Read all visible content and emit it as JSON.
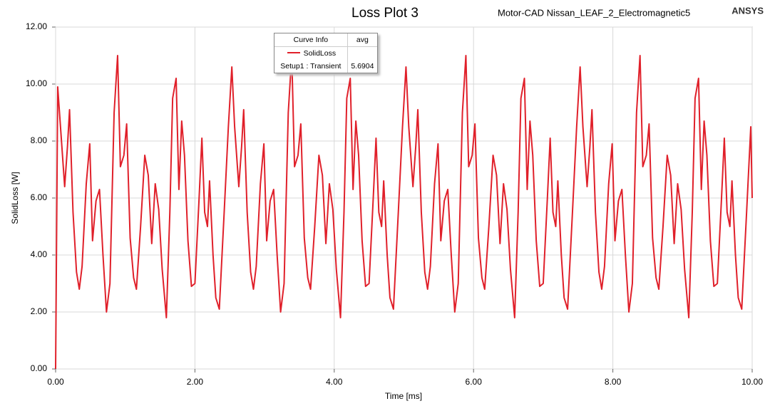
{
  "chart_data": {
    "type": "line",
    "title": "Loss Plot 3",
    "subtitle": "Motor-CAD Nissan_LEAF_2_Electromagnetic5",
    "brand": "ANSYS",
    "x_label": "Time [ms]",
    "y_label": "SolidLoss [W]",
    "xlim": [
      0,
      10
    ],
    "ylim": [
      0,
      12
    ],
    "xticks": [
      {
        "value": 0,
        "label": "0.00"
      },
      {
        "value": 2,
        "label": "2.00"
      },
      {
        "value": 4,
        "label": "4.00"
      },
      {
        "value": 6,
        "label": "6.00"
      },
      {
        "value": 8,
        "label": "8.00"
      },
      {
        "value": 10,
        "label": "10.00"
      }
    ],
    "yticks": [
      {
        "value": 0,
        "label": "0.00"
      },
      {
        "value": 2,
        "label": "2.00"
      },
      {
        "value": 4,
        "label": "4.00"
      },
      {
        "value": 6,
        "label": "6.00"
      },
      {
        "value": 8,
        "label": "8.00"
      },
      {
        "value": 10,
        "label": "10.00"
      },
      {
        "value": 12,
        "label": "12.00"
      }
    ],
    "grid": true,
    "legend": {
      "header": [
        "Curve Info",
        "avg"
      ],
      "setup": "Setup1 : Transient",
      "avg_value": 5.6904
    },
    "x": [
      0,
      0.03,
      0.07,
      0.13,
      0.17,
      0.2,
      0.25,
      0.3,
      0.34,
      0.38,
      0.44,
      0.49,
      0.53,
      0.58,
      0.63,
      0.68,
      0.73,
      0.78,
      0.84,
      0.89,
      0.93,
      0.98,
      1.02,
      1.07,
      1.12,
      1.16,
      1.22,
      1.28,
      1.33,
      1.38,
      1.43,
      1.48,
      1.53,
      1.59,
      1.64,
      1.68,
      1.73,
      1.77,
      1.81,
      1.85,
      1.9,
      1.95,
      2,
      2.06,
      2.1,
      2.14,
      2.18,
      2.21,
      2.26,
      2.3,
      2.35,
      2.42,
      2.48,
      2.53,
      2.57,
      2.63,
      2.67,
      2.7,
      2.75,
      2.8,
      2.84,
      2.88,
      2.94,
      2.99,
      3.03,
      3.08,
      3.13,
      3.18,
      3.23,
      3.28,
      3.34,
      3.39,
      3.43,
      3.48,
      3.52,
      3.57,
      3.62,
      3.66,
      3.72,
      3.78,
      3.83,
      3.88,
      3.93,
      3.98,
      4.03,
      4.09,
      4.14,
      4.18,
      4.23,
      4.27,
      4.31,
      4.35,
      4.4,
      4.45,
      4.5,
      4.56,
      4.6,
      4.64,
      4.68,
      4.71,
      4.76,
      4.8,
      4.85,
      4.92,
      4.98,
      5.03,
      5.07,
      5.13,
      5.17,
      5.2,
      5.25,
      5.3,
      5.34,
      5.38,
      5.44,
      5.49,
      5.53,
      5.58,
      5.63,
      5.68,
      5.73,
      5.78,
      5.84,
      5.89,
      5.93,
      5.98,
      6.02,
      6.07,
      6.12,
      6.16,
      6.22,
      6.28,
      6.33,
      6.38,
      6.43,
      6.48,
      6.53,
      6.59,
      6.64,
      6.68,
      6.73,
      6.77,
      6.81,
      6.85,
      6.9,
      6.95,
      7,
      7.06,
      7.1,
      7.14,
      7.18,
      7.21,
      7.26,
      7.3,
      7.35,
      7.42,
      7.48,
      7.53,
      7.57,
      7.63,
      7.67,
      7.7,
      7.75,
      7.8,
      7.84,
      7.88,
      7.94,
      7.99,
      8.03,
      8.08,
      8.13,
      8.18,
      8.23,
      8.28,
      8.34,
      8.39,
      8.43,
      8.48,
      8.52,
      8.57,
      8.62,
      8.66,
      8.72,
      8.78,
      8.83,
      8.88,
      8.93,
      8.98,
      9.03,
      9.09,
      9.14,
      9.18,
      9.23,
      9.27,
      9.31,
      9.35,
      9.4,
      9.45,
      9.5,
      9.56,
      9.6,
      9.64,
      9.68,
      9.71,
      9.76,
      9.8,
      9.85,
      9.92,
      9.98,
      10
    ],
    "series": [
      {
        "name": "SolidLoss",
        "color": "#e0202a",
        "values": [
          0,
          9.9,
          8.5,
          6.4,
          7.8,
          9.1,
          5.5,
          3.4,
          2.8,
          3.6,
          6.5,
          7.9,
          4.5,
          5.9,
          6.3,
          4.0,
          2.0,
          3.0,
          9.0,
          11.0,
          7.1,
          7.5,
          8.6,
          4.6,
          3.2,
          2.8,
          5.0,
          7.5,
          6.8,
          4.4,
          6.5,
          5.6,
          3.5,
          1.8,
          5.5,
          9.5,
          10.2,
          6.3,
          8.7,
          7.5,
          4.5,
          2.9,
          3.0,
          6.0,
          8.1,
          5.5,
          5.0,
          6.6,
          4.0,
          2.5,
          2.1,
          5.5,
          8.5,
          10.6,
          8.5,
          6.4,
          7.8,
          9.1,
          5.5,
          3.4,
          2.8,
          3.6,
          6.5,
          7.9,
          4.5,
          5.9,
          6.3,
          4.0,
          2.0,
          3.0,
          9.0,
          11.0,
          7.1,
          7.5,
          8.6,
          4.6,
          3.2,
          2.8,
          5.0,
          7.5,
          6.8,
          4.4,
          6.5,
          5.6,
          3.5,
          1.8,
          5.5,
          9.5,
          10.2,
          6.3,
          8.7,
          7.5,
          4.5,
          2.9,
          3.0,
          6.0,
          8.1,
          5.5,
          5.0,
          6.6,
          4.0,
          2.5,
          2.1,
          5.5,
          8.5,
          10.6,
          8.5,
          6.4,
          7.8,
          9.1,
          5.5,
          3.4,
          2.8,
          3.6,
          6.5,
          7.9,
          4.5,
          5.9,
          6.3,
          4.0,
          2.0,
          3.0,
          9.0,
          11.0,
          7.1,
          7.5,
          8.6,
          4.6,
          3.2,
          2.8,
          5.0,
          7.5,
          6.8,
          4.4,
          6.5,
          5.6,
          3.5,
          1.8,
          5.5,
          9.5,
          10.2,
          6.3,
          8.7,
          7.5,
          4.5,
          2.9,
          3.0,
          6.0,
          8.1,
          5.5,
          5.0,
          6.6,
          4.0,
          2.5,
          2.1,
          5.5,
          8.5,
          10.6,
          8.5,
          6.4,
          7.8,
          9.1,
          5.5,
          3.4,
          2.8,
          3.6,
          6.5,
          7.9,
          4.5,
          5.9,
          6.3,
          4.0,
          2.0,
          3.0,
          9.0,
          11.0,
          7.1,
          7.5,
          8.6,
          4.6,
          3.2,
          2.8,
          5.0,
          7.5,
          6.8,
          4.4,
          6.5,
          5.6,
          3.5,
          1.8,
          5.5,
          9.5,
          10.2,
          6.3,
          8.7,
          7.5,
          4.5,
          2.9,
          3.0,
          6.0,
          8.1,
          5.5,
          5.0,
          6.6,
          4.0,
          2.5,
          2.1,
          5.5,
          8.5,
          6.0
        ]
      }
    ]
  }
}
